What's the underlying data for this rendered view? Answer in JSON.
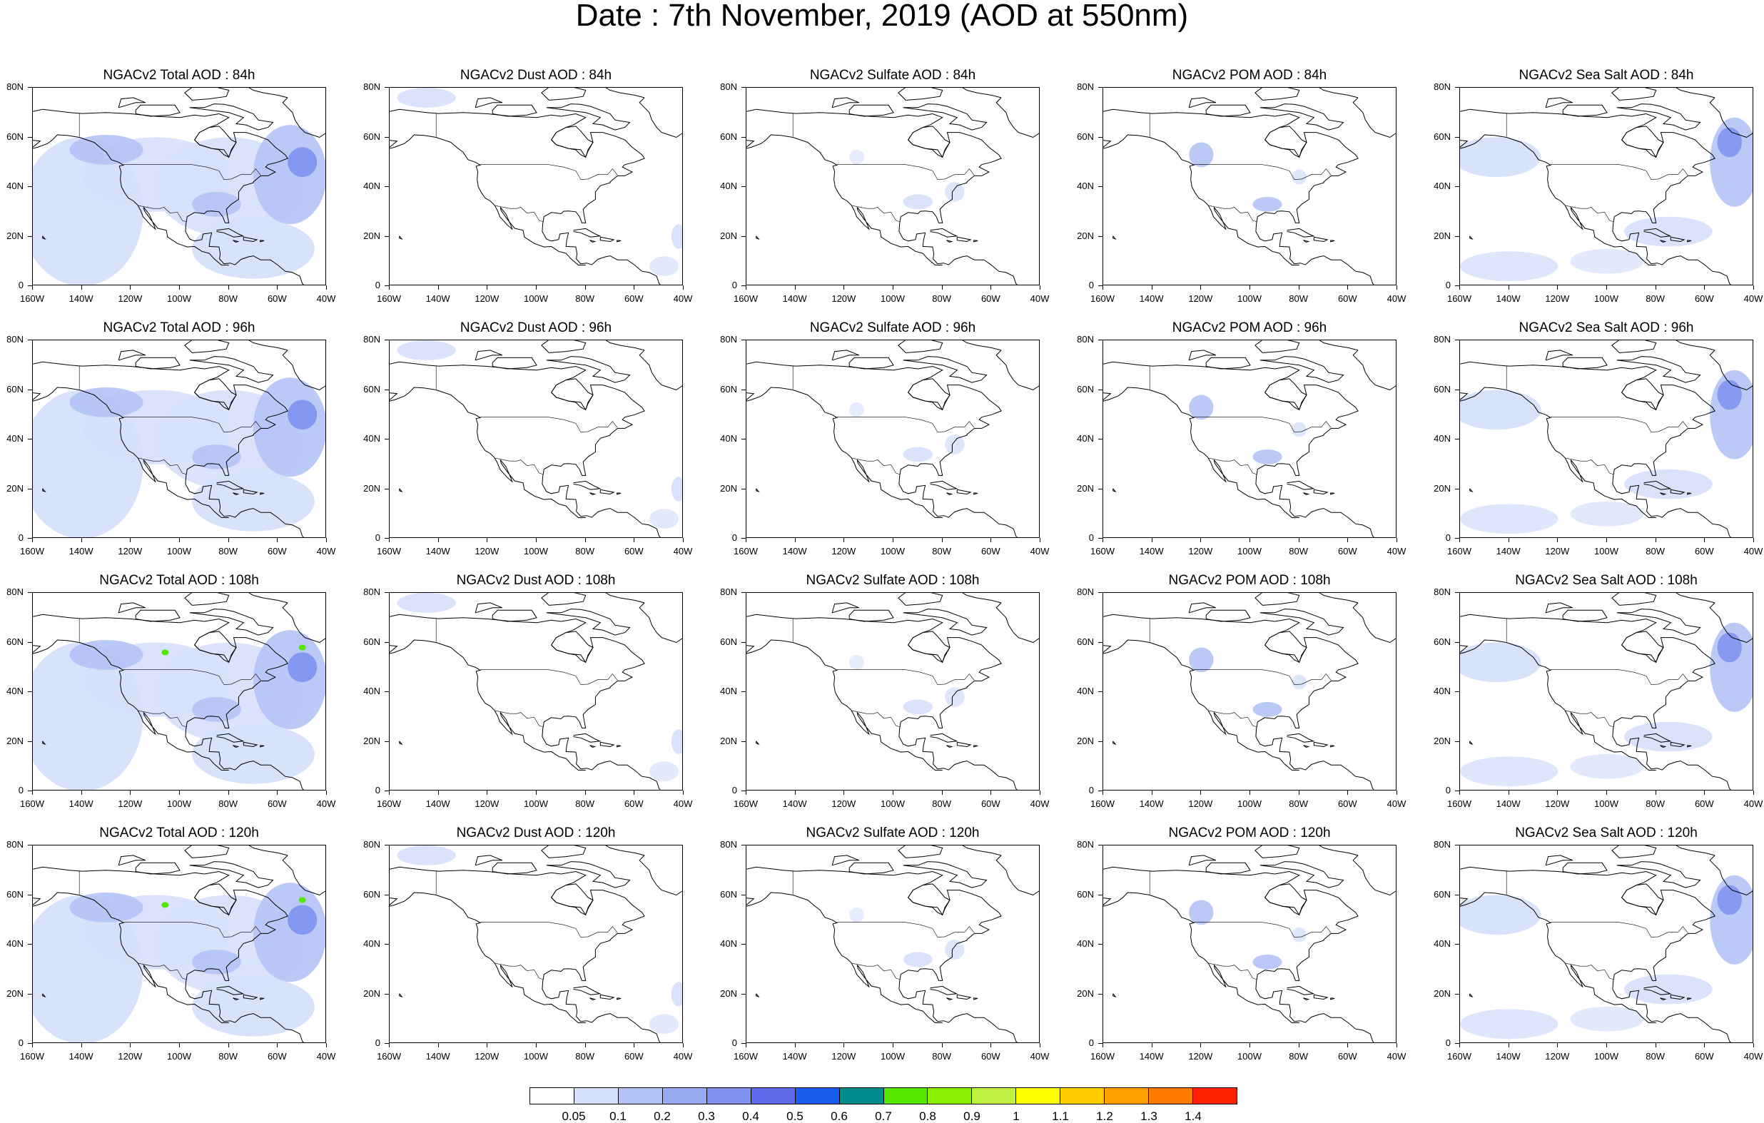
{
  "title": "Date : 7th November, 2019 (AOD at 550nm)",
  "rows": [
    {
      "panels": [
        {
          "title": "NGACv2 Total AOD : 84h",
          "species": "total"
        },
        {
          "title": "NGACv2 Dust AOD : 84h",
          "species": "dust"
        },
        {
          "title": "NGACv2 Sulfate AOD : 84h",
          "species": "sulfate"
        },
        {
          "title": "NGACv2 POM AOD : 84h",
          "species": "pom"
        },
        {
          "title": "NGACv2 Sea Salt AOD : 84h",
          "species": "seasalt"
        }
      ]
    },
    {
      "panels": [
        {
          "title": "NGACv2 Total AOD : 96h",
          "species": "total"
        },
        {
          "title": "NGACv2 Dust AOD : 96h",
          "species": "dust"
        },
        {
          "title": "NGACv2 Sulfate AOD : 96h",
          "species": "sulfate"
        },
        {
          "title": "NGACv2 POM AOD : 96h",
          "species": "pom"
        },
        {
          "title": "NGACv2 Sea Salt AOD : 96h",
          "species": "seasalt"
        }
      ]
    },
    {
      "panels": [
        {
          "title": "NGACv2 Total AOD : 108h",
          "species": "total"
        },
        {
          "title": "NGACv2 Dust AOD : 108h",
          "species": "dust"
        },
        {
          "title": "NGACv2 Sulfate AOD : 108h",
          "species": "sulfate"
        },
        {
          "title": "NGACv2 POM AOD : 108h",
          "species": "pom"
        },
        {
          "title": "NGACv2 Sea Salt AOD : 108h",
          "species": "seasalt"
        }
      ]
    },
    {
      "panels": [
        {
          "title": "NGACv2 Total AOD : 120h",
          "species": "total"
        },
        {
          "title": "NGACv2 Dust AOD : 120h",
          "species": "dust"
        },
        {
          "title": "NGACv2 Sulfate AOD : 120h",
          "species": "sulfate"
        },
        {
          "title": "NGACv2 POM AOD : 120h",
          "species": "pom"
        },
        {
          "title": "NGACv2 Sea Salt  AOD : 120h",
          "species": "seasalt"
        }
      ]
    }
  ],
  "lat_ticks": [
    "80N",
    "60N",
    "40N",
    "20N",
    "0"
  ],
  "lon_ticks": [
    "160W",
    "140W",
    "120W",
    "100W",
    "80W",
    "60W",
    "40W"
  ],
  "colorbar": {
    "labels": [
      "0.05",
      "0.1",
      "0.2",
      "0.3",
      "0.4",
      "0.5",
      "0.6",
      "0.7",
      "0.8",
      "0.9",
      "1",
      "1.1",
      "1.2",
      "1.3",
      "1.4"
    ],
    "colors": [
      "#ffffff",
      "#d6e0fb",
      "#b4c3f6",
      "#97aaf4",
      "#7e91ef",
      "#5f6aeb",
      "#1a5bf0",
      "#008b8b",
      "#55e600",
      "#88f000",
      "#c0f040",
      "#ffff00",
      "#ffcc00",
      "#ff9f00",
      "#ff7a00",
      "#ff2200"
    ]
  },
  "colors": {
    "aod_low": "#d6e0fb",
    "aod_mid": "#b4c3f6",
    "aod_high": "#7e91ef",
    "aod_peak": "#1a5bf0",
    "aod_extreme": "#55e600"
  }
}
